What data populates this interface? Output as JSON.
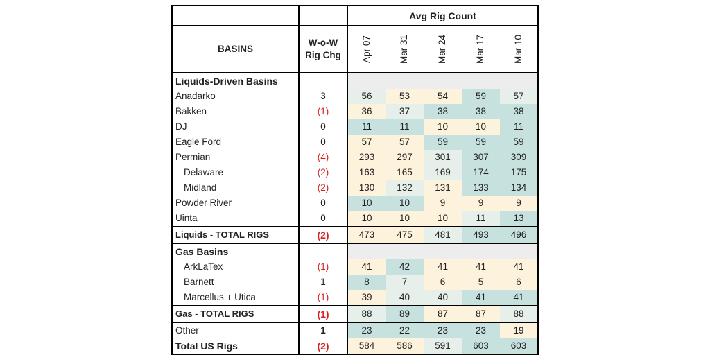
{
  "header": {
    "group_label": "Avg Rig Count",
    "basins_label": "BASINS",
    "chg_label_line1": "W-o-W",
    "chg_label_line2": "Rig Chg",
    "dates": [
      "Apr 07",
      "Mar 31",
      "Mar 24",
      "Mar 17",
      "Mar 10"
    ]
  },
  "colors": {
    "teal": "#c7e1df",
    "cream": "#fdf2dc",
    "pale": "#e6efe9",
    "negative": "#d62020"
  },
  "rows": [
    {
      "type": "section",
      "name": "Liquids-Driven Basins"
    },
    {
      "type": "data",
      "name": "Anadarko",
      "chg": "3",
      "values": [
        "56",
        "53",
        "54",
        "59",
        "57"
      ],
      "shade": [
        "pale",
        "cream",
        "cream",
        "teal",
        "pale"
      ]
    },
    {
      "type": "data",
      "name": "Bakken",
      "chg": "(1)",
      "values": [
        "36",
        "37",
        "38",
        "38",
        "38"
      ],
      "shade": [
        "cream",
        "pale",
        "teal",
        "teal",
        "teal"
      ]
    },
    {
      "type": "data",
      "name": "DJ",
      "chg": "0",
      "values": [
        "11",
        "11",
        "10",
        "10",
        "11"
      ],
      "shade": [
        "teal",
        "teal",
        "cream",
        "cream",
        "teal"
      ]
    },
    {
      "type": "data",
      "name": "Eagle Ford",
      "chg": "0",
      "values": [
        "57",
        "57",
        "59",
        "59",
        "59"
      ],
      "shade": [
        "cream",
        "cream",
        "teal",
        "teal",
        "teal"
      ]
    },
    {
      "type": "data",
      "name": "Permian",
      "chg": "(4)",
      "values": [
        "293",
        "297",
        "301",
        "307",
        "309"
      ],
      "shade": [
        "cream",
        "cream",
        "pale",
        "teal",
        "teal"
      ]
    },
    {
      "type": "data",
      "sub": true,
      "name": "Delaware",
      "chg": "(2)",
      "values": [
        "163",
        "165",
        "169",
        "174",
        "175"
      ],
      "shade": [
        "cream",
        "cream",
        "pale",
        "teal",
        "teal"
      ]
    },
    {
      "type": "data",
      "sub": true,
      "name": "Midland",
      "chg": "(2)",
      "values": [
        "130",
        "132",
        "131",
        "133",
        "134"
      ],
      "shade": [
        "cream",
        "pale",
        "cream",
        "teal",
        "teal"
      ]
    },
    {
      "type": "data",
      "name": "Powder River",
      "chg": "0",
      "values": [
        "10",
        "10",
        "9",
        "9",
        "9"
      ],
      "shade": [
        "teal",
        "teal",
        "cream",
        "cream",
        "cream"
      ]
    },
    {
      "type": "data",
      "name": "Uinta",
      "chg": "0",
      "values": [
        "10",
        "10",
        "10",
        "11",
        "13"
      ],
      "shade": [
        "cream",
        "cream",
        "cream",
        "pale",
        "teal"
      ]
    },
    {
      "type": "total",
      "name": "Liquids - TOTAL RIGS",
      "chg": "(2)",
      "values": [
        "473",
        "475",
        "481",
        "493",
        "496"
      ],
      "shade": [
        "cream",
        "cream",
        "pale",
        "teal",
        "teal"
      ]
    },
    {
      "type": "section",
      "name": "Gas Basins"
    },
    {
      "type": "data",
      "sub": true,
      "name": "ArkLaTex",
      "chg": "(1)",
      "values": [
        "41",
        "42",
        "41",
        "41",
        "41"
      ],
      "shade": [
        "cream",
        "teal",
        "cream",
        "cream",
        "cream"
      ]
    },
    {
      "type": "data",
      "sub": true,
      "name": "Barnett",
      "chg": "1",
      "values": [
        "8",
        "7",
        "6",
        "5",
        "6"
      ],
      "shade": [
        "teal",
        "pale",
        "cream",
        "cream",
        "cream"
      ]
    },
    {
      "type": "data",
      "sub": true,
      "name": "Marcellus + Utica",
      "chg": "(1)",
      "values": [
        "39",
        "40",
        "40",
        "41",
        "41"
      ],
      "shade": [
        "cream",
        "pale",
        "pale",
        "teal",
        "teal"
      ]
    },
    {
      "type": "total",
      "name": "Gas - TOTAL RIGS",
      "chg": "(1)",
      "values": [
        "88",
        "89",
        "87",
        "87",
        "88"
      ],
      "shade": [
        "pale",
        "teal",
        "cream",
        "cream",
        "pale"
      ]
    },
    {
      "type": "other",
      "name": "Other",
      "chg": "1",
      "values": [
        "23",
        "22",
        "23",
        "23",
        "19"
      ],
      "shade": [
        "teal",
        "teal",
        "teal",
        "teal",
        "cream"
      ]
    },
    {
      "type": "total-us",
      "name": "Total US Rigs",
      "chg": "(2)",
      "values": [
        "584",
        "586",
        "591",
        "603",
        "603"
      ],
      "shade": [
        "cream",
        "cream",
        "pale",
        "teal",
        "teal"
      ]
    }
  ]
}
